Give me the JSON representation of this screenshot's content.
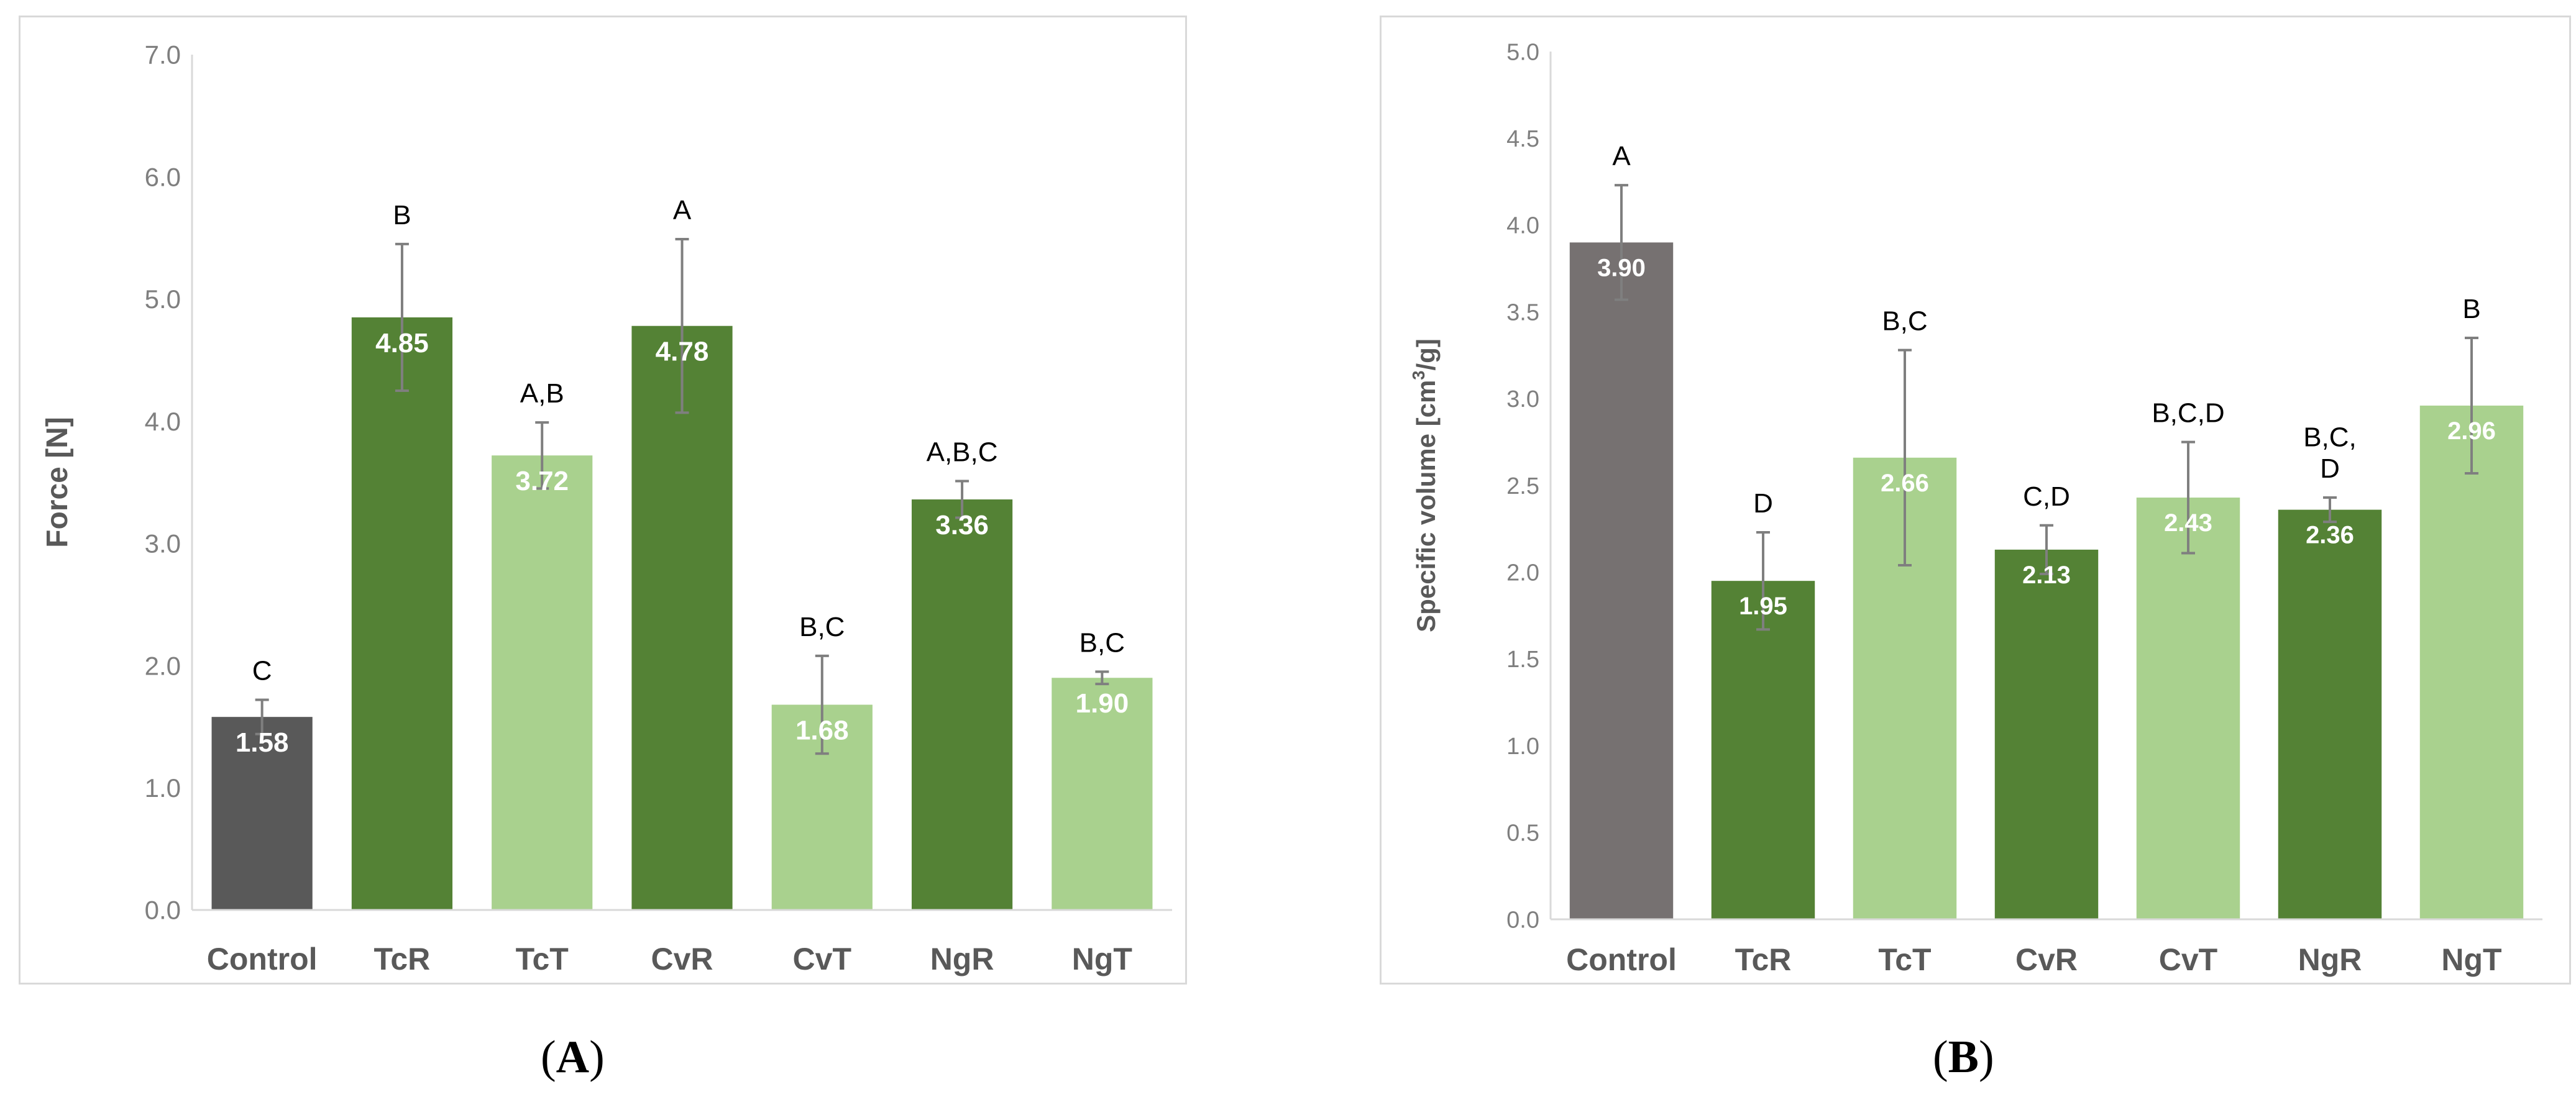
{
  "chart_data": [
    {
      "panel": "A",
      "type": "bar",
      "ylabel": "Force [N]",
      "xlabel": "",
      "ylim": [
        0,
        7
      ],
      "ytick_step": 1,
      "ytick_labels": [
        "0.0",
        "1.0",
        "2.0",
        "3.0",
        "4.0",
        "5.0",
        "6.0",
        "7.0"
      ],
      "categories": [
        "Control",
        "TcR",
        "TcT",
        "CvR",
        "CvT",
        "NgR",
        "NgT"
      ],
      "values": [
        1.58,
        4.85,
        3.72,
        4.78,
        1.68,
        3.36,
        1.9
      ],
      "value_labels": [
        "1.58",
        "4.85",
        "3.72",
        "4.78",
        "1.68",
        "3.36",
        "1.90"
      ],
      "errors": [
        0.14,
        0.6,
        0.27,
        0.71,
        0.4,
        0.15,
        0.05
      ],
      "significance": [
        [
          "C"
        ],
        [
          "B"
        ],
        [
          "A,B"
        ],
        [
          "A"
        ],
        [
          "B,C"
        ],
        [
          "A,B,C"
        ],
        [
          "B,C"
        ]
      ],
      "colors": [
        "#595959",
        "#548235",
        "#a9d18e",
        "#548235",
        "#a9d18e",
        "#548235",
        "#a9d18e"
      ],
      "value_label_colors": [
        "#ffffff",
        "#ffffff",
        "#ffffff",
        "#ffffff",
        "#ffffff",
        "#ffffff",
        "#ffffff"
      ],
      "grid": false
    },
    {
      "panel": "B",
      "type": "bar",
      "ylabel_prefix": "Specific volume [cm",
      "ylabel_sup": "3",
      "ylabel_suffix": "/g]",
      "xlabel": "",
      "ylim": [
        0,
        5
      ],
      "ytick_step": 0.5,
      "ytick_labels": [
        "0.0",
        "0.5",
        "1.0",
        "1.5",
        "2.0",
        "2.5",
        "3.0",
        "3.5",
        "4.0",
        "4.5",
        "5.0"
      ],
      "categories": [
        "Control",
        "TcR",
        "TcT",
        "CvR",
        "CvT",
        "NgR",
        "NgT"
      ],
      "values": [
        3.9,
        1.95,
        2.66,
        2.13,
        2.43,
        2.36,
        2.96
      ],
      "value_labels": [
        "3.90",
        "1.95",
        "2.66",
        "2.13",
        "2.43",
        "2.36",
        "2.96"
      ],
      "errors": [
        0.33,
        0.28,
        0.62,
        0.14,
        0.32,
        0.07,
        0.39
      ],
      "significance": [
        [
          "A"
        ],
        [
          "D"
        ],
        [
          "B,C"
        ],
        [
          "C,D"
        ],
        [
          "B,C,D"
        ],
        [
          "B,C,",
          "D"
        ],
        [
          "B"
        ]
      ],
      "colors": [
        "#767171",
        "#548235",
        "#a9d18e",
        "#548235",
        "#a9d18e",
        "#548235",
        "#a9d18e"
      ],
      "value_label_colors": [
        "#ffffff",
        "#ffffff",
        "#ffffff",
        "#ffffff",
        "#ffffff",
        "#ffffff",
        "#ffffff"
      ],
      "grid": false
    }
  ],
  "captions": {
    "a": "A",
    "b": "B"
  }
}
